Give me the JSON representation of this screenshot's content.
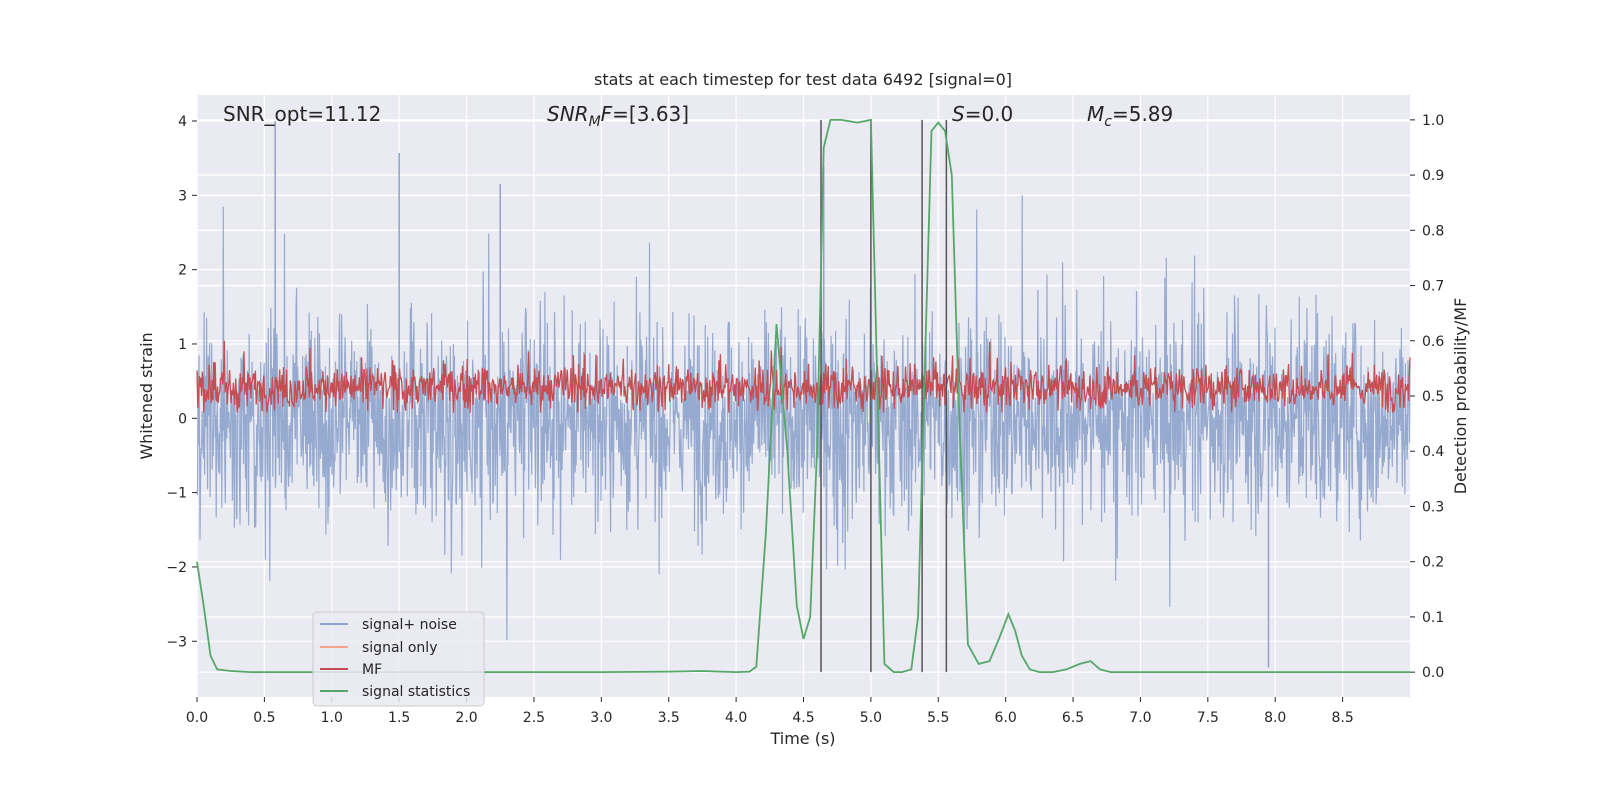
{
  "chart_data": {
    "type": "line",
    "title": "stats at each timestep for test data 6492 [signal=0]",
    "xlabel": "Time (s)",
    "ylabel": "Whitened strain",
    "y2label": "Detection probability/MF",
    "xlim": [
      0.0,
      9.0
    ],
    "ylim": [
      -3.75,
      4.35
    ],
    "y2lim": [
      -0.045,
      1.045
    ],
    "xticks": [
      "0.0",
      "0.5",
      "1.0",
      "1.5",
      "2.0",
      "2.5",
      "3.0",
      "3.5",
      "4.0",
      "4.5",
      "5.0",
      "5.5",
      "6.0",
      "6.5",
      "7.0",
      "7.5",
      "8.0",
      "8.5"
    ],
    "yticks": [
      "4",
      "3",
      "2",
      "1",
      "0",
      "−1",
      "−2",
      "−3"
    ],
    "y2ticks": [
      "1.0",
      "0.9",
      "0.8",
      "0.7",
      "0.6",
      "0.5",
      "0.4",
      "0.3",
      "0.2",
      "0.1",
      "0.0"
    ],
    "grid": true,
    "legend_position": "lower-left",
    "annotations": {
      "snr_opt": "SNR_opt=11.12",
      "snr_mf_main": "SNR",
      "snr_mf_sub": "M",
      "snr_mf_tail": "F",
      "snr_mf_value": "=[3.63]",
      "s_symbol": "S",
      "s_value": "=0.0",
      "mc_symbol": "M",
      "mc_sub": "c",
      "mc_value": "=5.89"
    },
    "vertical_lines_x": [
      4.63,
      5.0,
      5.38,
      5.56
    ],
    "series": [
      {
        "name": "signal+ noise",
        "color": "#8da3cc",
        "description_range": [
          -3.4,
          4.0
        ],
        "peaks": [
          [
            0.58,
            4.0
          ],
          [
            1.5,
            3.57
          ],
          [
            2.25,
            3.15
          ],
          [
            4.65,
            3.4
          ],
          [
            7.95,
            -3.35
          ]
        ]
      },
      {
        "name": "signal only",
        "color": "#f0a58c"
      },
      {
        "name": "MF",
        "color": "#c44e52",
        "range_y2": [
          0.47,
          0.6
        ]
      },
      {
        "name": "signal statistics",
        "color": "#55a868",
        "x": [
          0.0,
          0.05,
          0.1,
          0.15,
          0.25,
          0.4,
          1.0,
          2.0,
          3.0,
          3.5,
          3.75,
          4.0,
          4.1,
          4.15,
          4.22,
          4.3,
          4.38,
          4.45,
          4.5,
          4.55,
          4.6,
          4.65,
          4.7,
          4.78,
          4.9,
          5.0,
          5.05,
          5.1,
          5.17,
          5.23,
          5.3,
          5.35,
          5.4,
          5.45,
          5.5,
          5.55,
          5.6,
          5.65,
          5.72,
          5.8,
          5.88,
          5.95,
          6.02,
          6.07,
          6.12,
          6.18,
          6.25,
          6.35,
          6.45,
          6.55,
          6.63,
          6.7,
          6.78,
          7.0,
          8.0,
          9.0
        ],
        "y": [
          0.2,
          0.12,
          0.03,
          0.005,
          0.002,
          0.0,
          0.0,
          0.0,
          0.0,
          0.001,
          0.002,
          0.0,
          0.001,
          0.01,
          0.25,
          0.63,
          0.4,
          0.12,
          0.06,
          0.1,
          0.4,
          0.95,
          1.0,
          1.0,
          0.995,
          1.0,
          0.5,
          0.015,
          0.0,
          0.0,
          0.005,
          0.1,
          0.55,
          0.98,
          0.995,
          0.98,
          0.9,
          0.5,
          0.05,
          0.015,
          0.02,
          0.06,
          0.105,
          0.075,
          0.03,
          0.005,
          0.0,
          0.0,
          0.005,
          0.015,
          0.02,
          0.005,
          0.0,
          0.0,
          0.0,
          0.0
        ]
      }
    ]
  }
}
